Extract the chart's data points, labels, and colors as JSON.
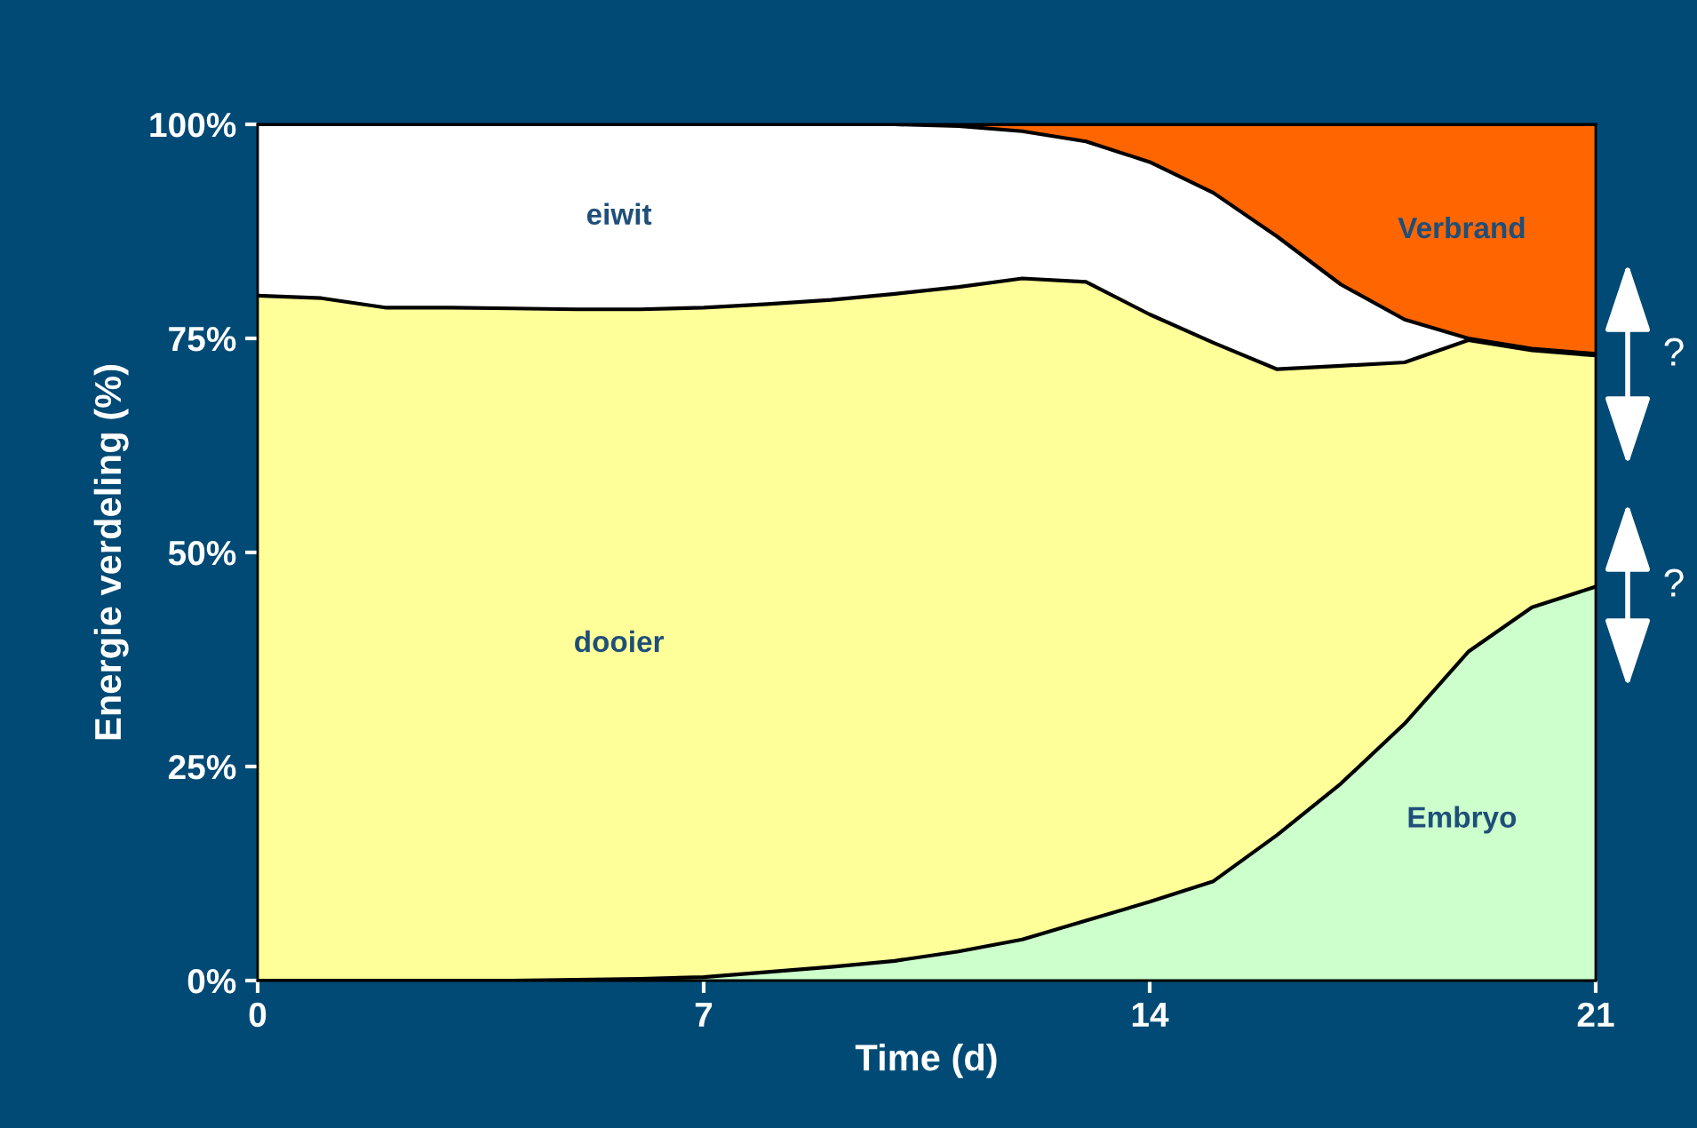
{
  "chart_data": {
    "type": "area",
    "stacked": true,
    "xlabel": "Time (d)",
    "ylabel": "Energie verdeling (%)",
    "x": [
      0,
      1,
      2,
      3,
      4,
      5,
      6,
      7,
      8,
      9,
      10,
      11,
      12,
      13,
      14,
      15,
      16,
      17,
      18,
      19,
      20,
      21
    ],
    "xlim": [
      0,
      21
    ],
    "xticks": [
      0,
      7,
      14,
      21
    ],
    "ylim": [
      0,
      100
    ],
    "yticks": [
      {
        "value": 0,
        "label": "0%"
      },
      {
        "value": 25,
        "label": "25%"
      },
      {
        "value": 50,
        "label": "50%"
      },
      {
        "value": 75,
        "label": "75%"
      },
      {
        "value": 100,
        "label": "100%"
      }
    ],
    "series": [
      {
        "name": "Embryo",
        "color": "#ccffcc",
        "values": [
          0,
          0,
          0,
          0,
          0,
          0.1,
          0.2,
          0.4,
          1,
          1.6,
          2.3,
          3.4,
          4.8,
          7,
          9.2,
          11.6,
          17,
          23,
          30,
          38.4,
          43.6,
          46
        ]
      },
      {
        "name": "dooier",
        "color": "#ffff99",
        "values": [
          80,
          79.7,
          78.6,
          78.6,
          78.5,
          78.3,
          78.2,
          78.2,
          78,
          77.9,
          77.9,
          77.6,
          77.2,
          74.6,
          68.6,
          62.9,
          54.4,
          48.8,
          42.2,
          36.4,
          30,
          27
        ]
      },
      {
        "name": "eiwit",
        "color": "#ffffff",
        "values": [
          20,
          20.3,
          21.4,
          21.4,
          21.5,
          21.6,
          21.6,
          21.4,
          21,
          20.5,
          19.8,
          18.8,
          17.2,
          16.4,
          17.8,
          17.5,
          15.5,
          9.5,
          5,
          0.2,
          0.2,
          0.2
        ]
      },
      {
        "name": "Verbrand",
        "color": "#ff6600",
        "values": [
          0,
          0,
          0,
          0,
          0,
          0,
          0,
          0,
          0,
          0,
          0,
          0.2,
          0.8,
          2,
          4.4,
          8,
          13.1,
          18.7,
          22.8,
          25,
          26.2,
          26.8
        ]
      }
    ],
    "annotations": [
      "?",
      "?"
    ],
    "grid": false,
    "legend": false
  }
}
